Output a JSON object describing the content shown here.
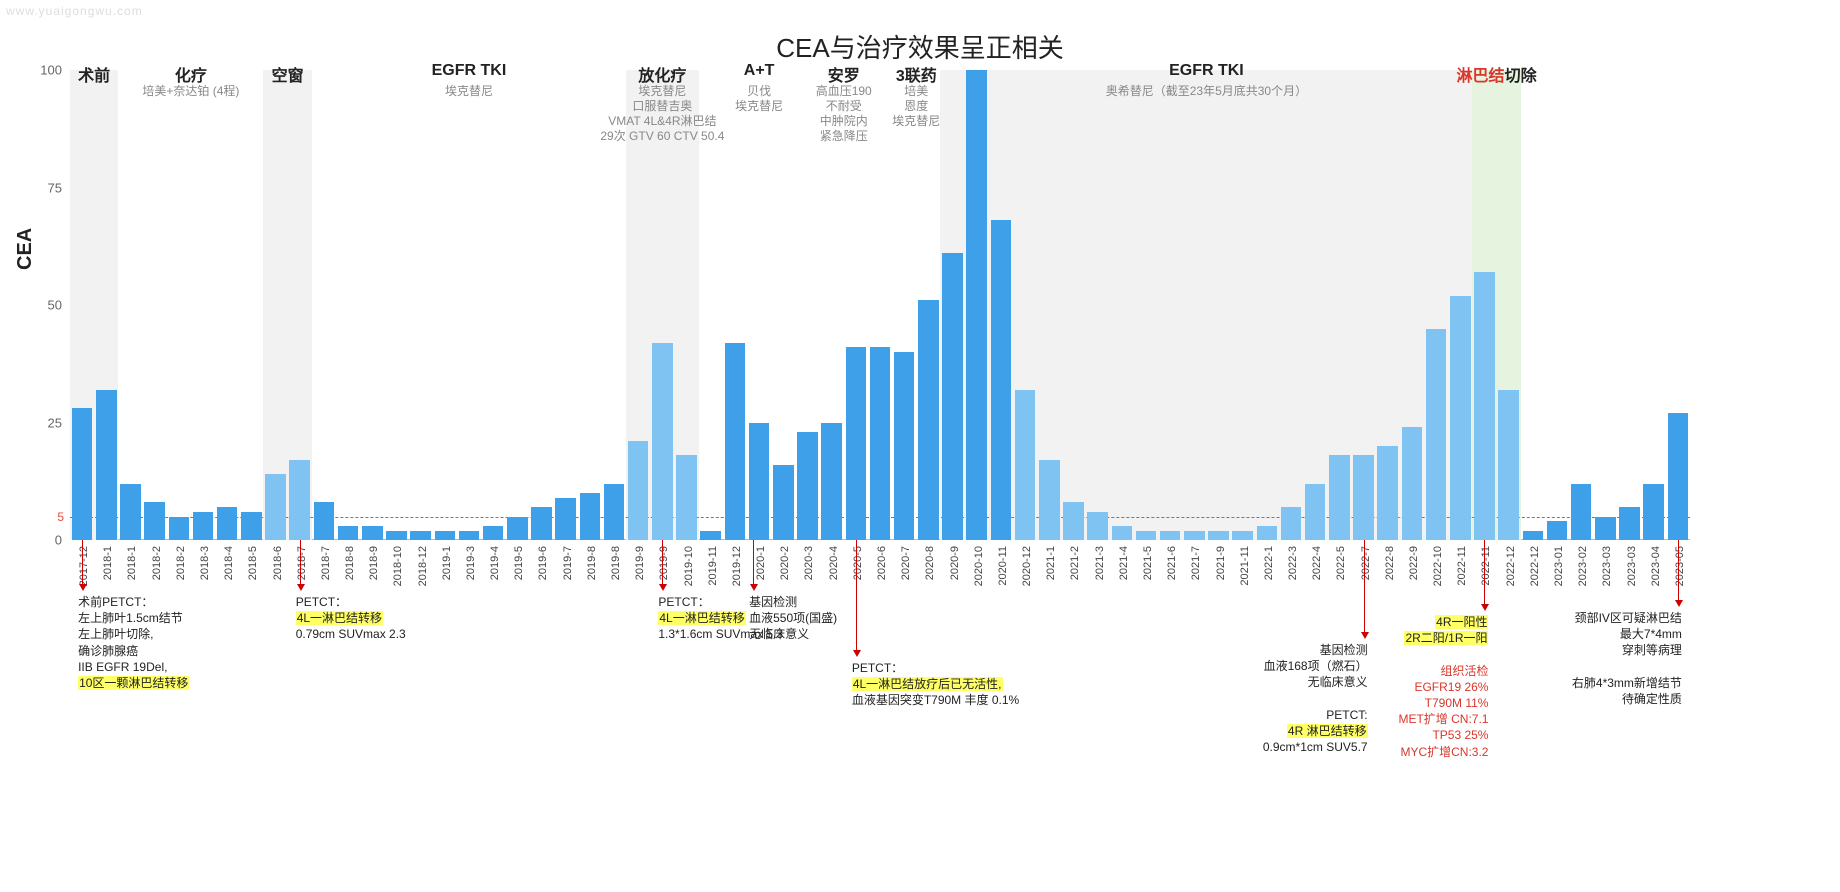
{
  "watermark": "www.yuaigongwu.com",
  "chart": {
    "title": "CEA与治疗效果呈正相关",
    "type": "bar",
    "ylabel": "CEA",
    "ylim": [
      0,
      100
    ],
    "yticks": [
      0,
      25,
      50,
      75,
      100
    ],
    "ref_line": {
      "value": 5,
      "label": "5",
      "color": "#e74c3c",
      "dash": true
    },
    "bar_color": "#3ea0e8",
    "bar_color_light": "#7ec3f2",
    "bar_gap_ratio": 0.15,
    "background_color": "#ffffff",
    "phase_band_color": "#f2f2f2",
    "phase_band_highlight": "#e6f3df",
    "title_fontsize": 26,
    "label_fontsize": 20,
    "tick_fontsize": 13,
    "xtick_fontsize": 11,
    "note_fontsize": 12,
    "phases": [
      {
        "label": "术前",
        "sub": "",
        "from": 0,
        "to": 2,
        "band": true
      },
      {
        "label": "化疗",
        "sub": "培美+奈达铂 (4程)",
        "from": 2,
        "to": 8,
        "band": false
      },
      {
        "label": "空窗",
        "sub": "",
        "from": 8,
        "to": 10,
        "band": true
      },
      {
        "label": "EGFR TKI",
        "sub": "埃克替尼",
        "from": 10,
        "to": 23,
        "band": false
      },
      {
        "label": "放化疗",
        "sub": "埃克替尼\n口服替吉奥\nVMAT 4L&4R淋巴结\n29次 GTV 60 CTV 50.4",
        "from": 23,
        "to": 26,
        "band": true
      },
      {
        "label": "A+T",
        "sub": "贝伐\n埃克替尼",
        "from": 27,
        "to": 30,
        "band": false
      },
      {
        "label": "安罗",
        "sub": "高血压190\n不耐受\n中肿院内\n紧急降压",
        "from": 31,
        "to": 33,
        "band": false
      },
      {
        "label": "3联药",
        "sub": "培美\n恩度\n埃克替尼",
        "from": 34,
        "to": 36,
        "band": false
      },
      {
        "label": "EGFR TKI",
        "sub": "奥希替尼（截至23年5月底共30个月）",
        "from": 36,
        "to": 58,
        "band": true
      },
      {
        "label": "淋巴结",
        "labelExtra": "切除",
        "sub": "",
        "from": 58,
        "to": 60,
        "band": true,
        "highlight": true
      }
    ],
    "data": [
      {
        "x": "2017-12",
        "y": 28
      },
      {
        "x": "2018-1",
        "y": 32
      },
      {
        "x": "2018-1",
        "y": 12
      },
      {
        "x": "2018-2",
        "y": 8
      },
      {
        "x": "2018-2",
        "y": 5
      },
      {
        "x": "2018-3",
        "y": 6
      },
      {
        "x": "2018-4",
        "y": 7
      },
      {
        "x": "2018-5",
        "y": 6
      },
      {
        "x": "2018-6",
        "y": 14,
        "light": true
      },
      {
        "x": "2018-7",
        "y": 17,
        "light": true
      },
      {
        "x": "2018-7",
        "y": 8
      },
      {
        "x": "2018-8",
        "y": 3
      },
      {
        "x": "2018-9",
        "y": 3
      },
      {
        "x": "2018-10",
        "y": 2
      },
      {
        "x": "2018-12",
        "y": 2
      },
      {
        "x": "2019-1",
        "y": 2
      },
      {
        "x": "2019-3",
        "y": 2
      },
      {
        "x": "2019-4",
        "y": 3
      },
      {
        "x": "2019-5",
        "y": 5
      },
      {
        "x": "2019-6",
        "y": 7
      },
      {
        "x": "2019-7",
        "y": 9
      },
      {
        "x": "2019-8",
        "y": 10
      },
      {
        "x": "2019-8",
        "y": 12
      },
      {
        "x": "2019-9",
        "y": 21,
        "light": true
      },
      {
        "x": "2019-9",
        "y": 42,
        "light": true
      },
      {
        "x": "2019-10",
        "y": 18,
        "light": true
      },
      {
        "x": "2019-11",
        "y": 2
      },
      {
        "x": "2019-12",
        "y": 42
      },
      {
        "x": "2020-1",
        "y": 25
      },
      {
        "x": "2020-2",
        "y": 16
      },
      {
        "x": "2020-3",
        "y": 23
      },
      {
        "x": "2020-4",
        "y": 25
      },
      {
        "x": "2020-5",
        "y": 41
      },
      {
        "x": "2020-6",
        "y": 41
      },
      {
        "x": "2020-7",
        "y": 40
      },
      {
        "x": "2020-8",
        "y": 51
      },
      {
        "x": "2020-9",
        "y": 61
      },
      {
        "x": "2020-10",
        "y": 100
      },
      {
        "x": "2020-11",
        "y": 68
      },
      {
        "x": "2020-12",
        "y": 32,
        "light": true
      },
      {
        "x": "2021-1",
        "y": 17,
        "light": true
      },
      {
        "x": "2021-2",
        "y": 8,
        "light": true
      },
      {
        "x": "2021-3",
        "y": 6,
        "light": true
      },
      {
        "x": "2021-4",
        "y": 3,
        "light": true
      },
      {
        "x": "2021-5",
        "y": 2,
        "light": true
      },
      {
        "x": "2021-6",
        "y": 2,
        "light": true
      },
      {
        "x": "2021-7",
        "y": 2,
        "light": true
      },
      {
        "x": "2021-9",
        "y": 2,
        "light": true
      },
      {
        "x": "2021-11",
        "y": 2,
        "light": true
      },
      {
        "x": "2022-1",
        "y": 3,
        "light": true
      },
      {
        "x": "2022-3",
        "y": 7,
        "light": true
      },
      {
        "x": "2022-4",
        "y": 12,
        "light": true
      },
      {
        "x": "2022-5",
        "y": 18,
        "light": true
      },
      {
        "x": "2022-7",
        "y": 18,
        "light": true
      },
      {
        "x": "2022-8",
        "y": 20,
        "light": true
      },
      {
        "x": "2022-9",
        "y": 24,
        "light": true
      },
      {
        "x": "2022-10",
        "y": 45,
        "light": true
      },
      {
        "x": "2022-11",
        "y": 52,
        "light": true
      },
      {
        "x": "2022-11",
        "y": 57,
        "light": true
      },
      {
        "x": "2022-12",
        "y": 32,
        "light": true
      },
      {
        "x": "2022-12",
        "y": 2
      },
      {
        "x": "2023-01",
        "y": 4
      },
      {
        "x": "2023-02",
        "y": 12
      },
      {
        "x": "2023-03",
        "y": 5
      },
      {
        "x": "2023-03",
        "y": 7
      },
      {
        "x": "2023-04",
        "y": 12
      },
      {
        "x": "2023-05",
        "y": 27
      }
    ],
    "annotations": [
      {
        "bar": 0,
        "arrowTop": 470,
        "arrowLen": 44,
        "lines": [
          {
            "t": "术前PETCT："
          },
          {
            "t": "左上肺叶1.5cm结节"
          },
          {
            "t": "左上肺叶切除,"
          },
          {
            "t": "确诊肺腺癌"
          },
          {
            "t": "IIB EGFR 19Del,"
          },
          {
            "t": "10区一颗淋巴结转移",
            "hl": true
          }
        ]
      },
      {
        "bar": 9,
        "arrowTop": 470,
        "arrowLen": 44,
        "lines": [
          {
            "t": "PETCT："
          },
          {
            "t": "4L一淋巴结转移",
            "hl": true
          },
          {
            "t": "0.79cm SUVmax 2.3"
          }
        ]
      },
      {
        "bar": 24,
        "arrowTop": 470,
        "arrowLen": 44,
        "lines": [
          {
            "t": "PETCT："
          },
          {
            "t": "4L一淋巴结转移",
            "hl": true
          },
          {
            "t": "1.3*1.6cm SUVmax 5.3"
          }
        ]
      },
      {
        "bar": 28,
        "arrowTop": 470,
        "arrowLen": 44,
        "xshift": -6,
        "lines": [
          {
            "t": "基因检测"
          },
          {
            "t": "血液550项(国盛)"
          },
          {
            "t": "无临床意义"
          }
        ]
      },
      {
        "bar": 32,
        "arrowTop": 470,
        "arrowLen": 110,
        "lines": [
          {
            "t": "PETCT："
          },
          {
            "t": "4L一淋巴结放疗后已无活性,",
            "hl": true
          },
          {
            "t": "血液基因突变T790M 丰度 0.1%"
          }
        ]
      },
      {
        "bar": 53,
        "arrowTop": 470,
        "arrowLen": 92,
        "align": "right",
        "lines": [
          {
            "t": "基因检测"
          },
          {
            "t": "血液168项（燃石）"
          },
          {
            "t": "无临床意义"
          },
          {
            "t": " "
          },
          {
            "t": "PETCT:"
          },
          {
            "t": "4R 淋巴结转移",
            "hl": true
          },
          {
            "t": "0.9cm*1cm SUV5.7"
          }
        ]
      },
      {
        "bar": 58,
        "arrowTop": 470,
        "arrowLen": 64,
        "align": "right",
        "lines": [
          {
            "t": "4R一阳性",
            "hl": true
          },
          {
            "t": "2R二阳/1R一阳",
            "hl": true
          },
          {
            "t": " "
          },
          {
            "t": "组织活检",
            "red": true
          },
          {
            "t": "EGFR19 26%",
            "red": true
          },
          {
            "t": "T790M 11%",
            "red": true
          },
          {
            "t": "MET扩增 CN:7.1",
            "red": true
          },
          {
            "t": "TP53 25%",
            "red": true
          },
          {
            "t": "MYC扩增CN:3.2",
            "red": true
          }
        ]
      },
      {
        "bar": 66,
        "arrowTop": 470,
        "arrowLen": 60,
        "align": "right",
        "lines": [
          {
            "t": "颈部IV区可疑淋巴结"
          },
          {
            "t": "最大7*4mm"
          },
          {
            "t": "穿刺等病理"
          },
          {
            "t": " "
          },
          {
            "t": "右肺4*3mm新增结节"
          },
          {
            "t": "待确定性质"
          }
        ]
      }
    ]
  }
}
